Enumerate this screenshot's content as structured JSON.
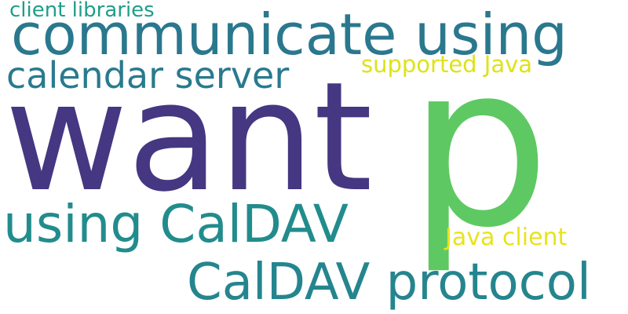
{
  "words": {
    "want": {
      "text": "want",
      "color": "#453781"
    },
    "p": {
      "text": "p",
      "color": "#5ec962"
    },
    "communicate_using": {
      "text": "communicate using",
      "color": "#2a788e"
    },
    "calendar_server": {
      "text": "calendar server",
      "color": "#297a8e"
    },
    "using_caldav": {
      "text": "using CalDAV",
      "color": "#228c8d"
    },
    "caldav_protocol": {
      "text": "CalDAV protocol",
      "color": "#25858e"
    },
    "client_libraries": {
      "text": "client libraries",
      "color": "#1f9e89"
    },
    "supported_java": {
      "text": "supported Java",
      "color": "#dde318"
    },
    "java_client": {
      "text": "Java client",
      "color": "#e7e419"
    }
  }
}
